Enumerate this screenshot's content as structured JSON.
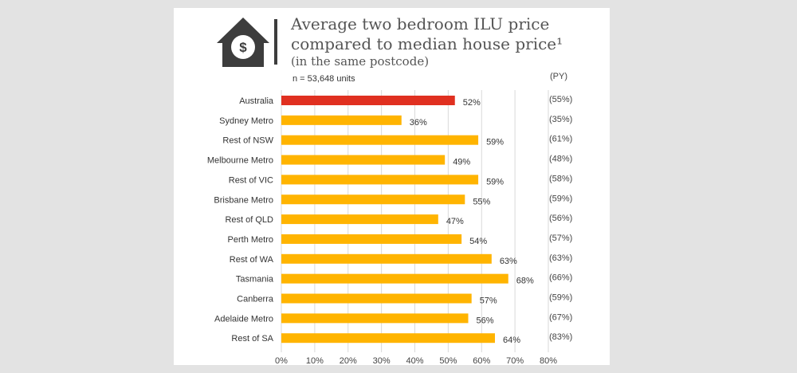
{
  "title_lines": [
    "Average two bedroom ILU price",
    "compared to median house price¹",
    "(in the same postcode)"
  ],
  "subtitle": "n = 53,648 units",
  "py_header": "(PY)",
  "icon": "house-dollar-icon",
  "chart_data": {
    "type": "bar",
    "orientation": "horizontal",
    "title": "Average two bedroom ILU price compared to median house price¹ (in the same postcode)",
    "categories": [
      "Australia",
      "Sydney Metro",
      "Rest of NSW",
      "Melbourne Metro",
      "Rest of VIC",
      "Brisbane Metro",
      "Rest of QLD",
      "Perth Metro",
      "Rest of WA",
      "Tasmania",
      "Canberra",
      "Adelaide Metro",
      "Rest of SA"
    ],
    "values": [
      52,
      36,
      59,
      49,
      59,
      55,
      47,
      54,
      63,
      68,
      57,
      56,
      64
    ],
    "data_labels": [
      "52%",
      "36%",
      "59%",
      "49%",
      "59%",
      "55%",
      "47%",
      "54%",
      "63%",
      "68%",
      "57%",
      "56%",
      "64%"
    ],
    "prior_year_labels": [
      "(55%)",
      "(35%)",
      "(61%)",
      "(48%)",
      "(58%)",
      "(59%)",
      "(56%)",
      "(57%)",
      "(63%)",
      "(66%)",
      "(59%)",
      "(67%)",
      "(83%)"
    ],
    "xlim": [
      0,
      80
    ],
    "x_ticks": [
      "0%",
      "10%",
      "20%",
      "30%",
      "40%",
      "50%",
      "60%",
      "70%",
      "80%"
    ],
    "grid": true,
    "colors": {
      "highlight": "#e03020",
      "bar": "#ffb400",
      "grid": "#d9d9d9"
    }
  }
}
